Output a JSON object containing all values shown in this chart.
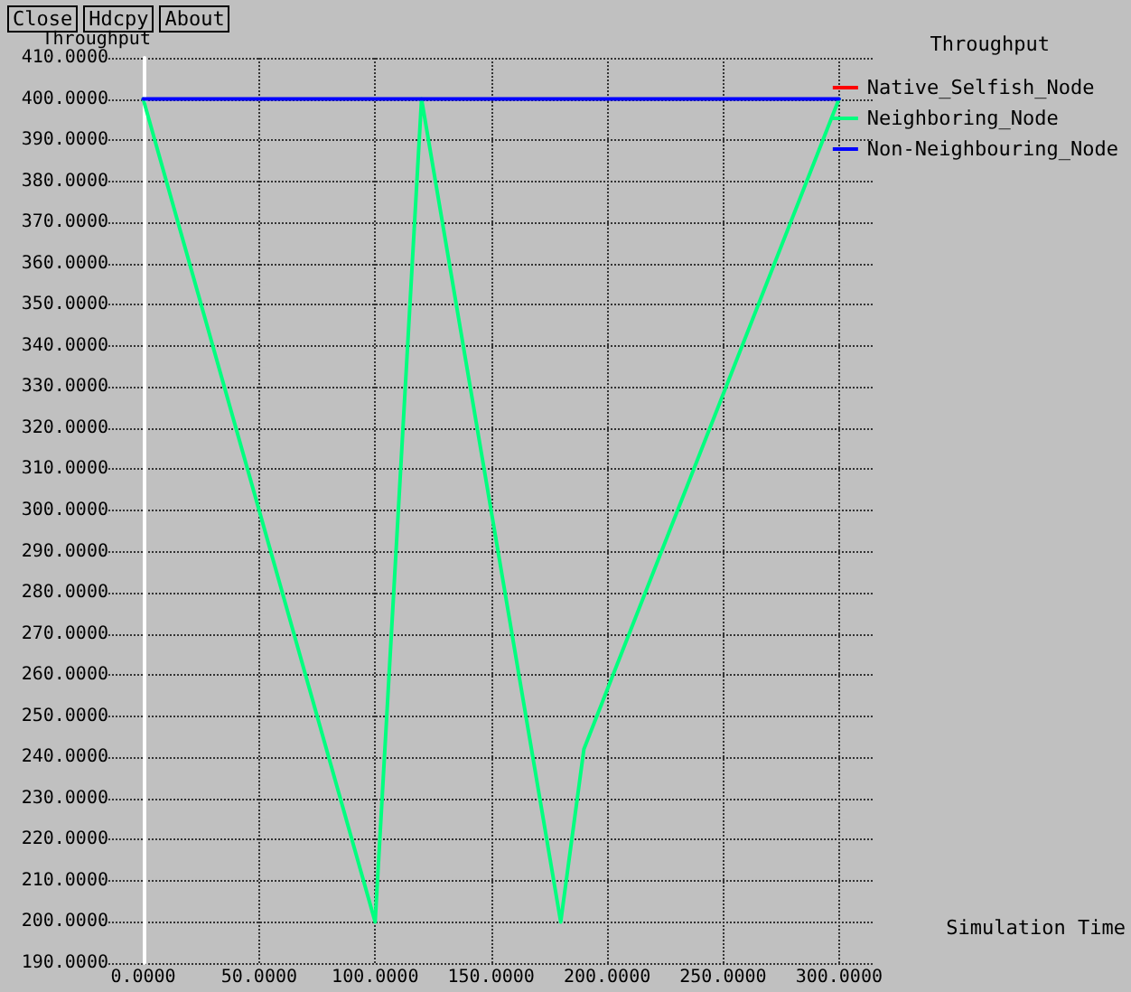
{
  "chart_data": {
    "type": "line",
    "title": "Throughput",
    "ylabel": "Throughput",
    "xlabel": "Simulation Time",
    "annotations": [
      "Close",
      "Hdcpy",
      "About"
    ],
    "series": [
      {
        "name": "Native_Selfish_Node",
        "color": "#ff0000"
      },
      {
        "name": "Neighboring_Node",
        "color": "#00ff7f",
        "x": [
          0,
          100,
          120,
          180,
          190,
          300
        ],
        "values": [
          400,
          200,
          400,
          200,
          242,
          400
        ]
      },
      {
        "name": "Non-Neighbouring_Node",
        "color": "#0000ff",
        "x": [
          0,
          300
        ],
        "values": [
          400,
          400
        ]
      }
    ],
    "xlim": [
      -15,
      315
    ],
    "xticks": [
      {
        "value": 0,
        "label": "0.0000"
      },
      {
        "value": 50,
        "label": "50.0000"
      },
      {
        "value": 100,
        "label": "100.0000"
      },
      {
        "value": 150,
        "label": "150.0000"
      },
      {
        "value": 200,
        "label": "200.0000"
      },
      {
        "value": 250,
        "label": "250.0000"
      },
      {
        "value": 300,
        "label": "300.0000"
      }
    ],
    "ylim": [
      190,
      410
    ],
    "yticks": [
      {
        "value": 190,
        "label": "190.0000"
      },
      {
        "value": 200,
        "label": "200.0000"
      },
      {
        "value": 210,
        "label": "210.0000"
      },
      {
        "value": 220,
        "label": "220.0000"
      },
      {
        "value": 230,
        "label": "230.0000"
      },
      {
        "value": 240,
        "label": "240.0000"
      },
      {
        "value": 250,
        "label": "250.0000"
      },
      {
        "value": 260,
        "label": "260.0000"
      },
      {
        "value": 270,
        "label": "270.0000"
      },
      {
        "value": 280,
        "label": "280.0000"
      },
      {
        "value": 290,
        "label": "290.0000"
      },
      {
        "value": 300,
        "label": "300.0000"
      },
      {
        "value": 310,
        "label": "310.0000"
      },
      {
        "value": 320,
        "label": "320.0000"
      },
      {
        "value": 330,
        "label": "330.0000"
      },
      {
        "value": 340,
        "label": "340.0000"
      },
      {
        "value": 350,
        "label": "350.0000"
      },
      {
        "value": 360,
        "label": "360.0000"
      },
      {
        "value": 370,
        "label": "370.0000"
      },
      {
        "value": 380,
        "label": "380.0000"
      },
      {
        "value": 390,
        "label": "390.0000"
      },
      {
        "value": 400,
        "label": "400.0000"
      },
      {
        "value": 410,
        "label": "410.0000"
      }
    ],
    "grid": true,
    "legend": "top right",
    "marker": "none",
    "line_style": "solid"
  }
}
